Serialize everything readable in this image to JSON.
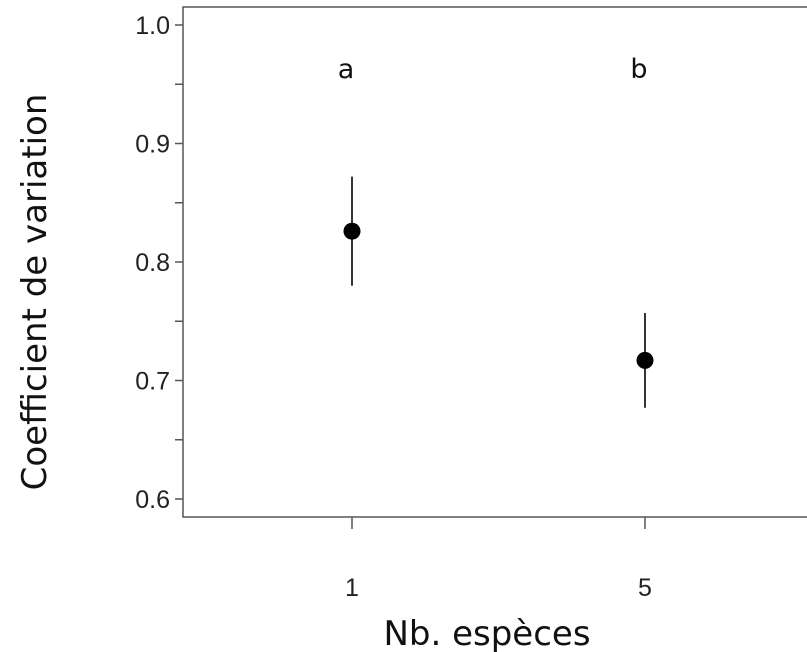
{
  "chart_data": {
    "type": "scatter",
    "title": "",
    "xlabel": "Nb. espèces",
    "ylabel": "Coefficient de variation",
    "categories": [
      "1",
      "5"
    ],
    "series": [
      {
        "values": [
          0.826,
          0.717
        ],
        "error_low": [
          0.78,
          0.677
        ],
        "error_high": [
          0.872,
          0.757
        ]
      }
    ],
    "annotations": [
      "a",
      "b"
    ],
    "ylim": [
      0.6,
      1.0
    ],
    "yticks": [
      "0.6",
      "0.7",
      "0.8",
      "0.9",
      "1.0"
    ],
    "grid": false,
    "marker_color": "#000000",
    "axis_color": "#555555"
  }
}
